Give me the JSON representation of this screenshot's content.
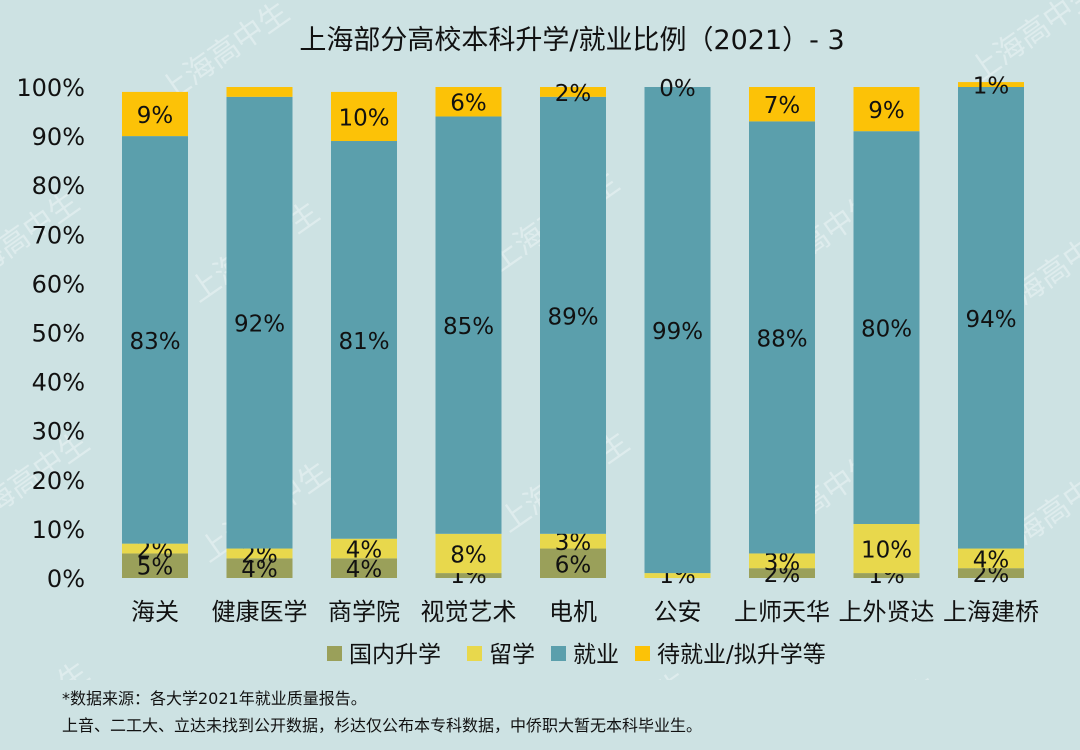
{
  "chart_data": {
    "type": "bar",
    "stacked": true,
    "title": "上海部分高校本科升学/就业比例（2021）- 3",
    "categories": [
      "海关",
      "健康医学",
      "商学院",
      "视觉艺术",
      "电机",
      "公安",
      "上师天华",
      "上外贤达",
      "上海建桥"
    ],
    "series": [
      {
        "name": "国内升学",
        "color": "#9aa05a",
        "values": [
          5,
          4,
          4,
          1,
          6,
          0,
          2,
          1,
          2
        ],
        "labels": [
          "5%",
          "4%",
          "4%",
          "1%",
          "6%",
          "",
          "2%",
          "1%",
          "2%"
        ]
      },
      {
        "name": "留学",
        "color": "#e8d84c",
        "values": [
          2,
          2,
          4,
          8,
          3,
          1,
          3,
          10,
          4
        ],
        "labels": [
          "2%",
          "2%",
          "4%",
          "8%",
          "3%",
          "1%",
          "3%",
          "10%",
          "4%"
        ]
      },
      {
        "name": "就业",
        "color": "#5b9fac",
        "values": [
          83,
          92,
          81,
          85,
          89,
          99,
          88,
          80,
          94
        ],
        "labels": [
          "83%",
          "92%",
          "81%",
          "85%",
          "89%",
          "99%",
          "88%",
          "80%",
          "94%"
        ]
      },
      {
        "name": "待就业/拟升学等",
        "color": "#fcc207",
        "values": [
          9,
          2,
          10,
          6,
          2,
          0,
          7,
          9,
          1
        ],
        "labels": [
          "9%",
          "",
          "10%",
          "6%",
          "2%",
          "0%",
          "7%",
          "9%",
          "1%"
        ]
      }
    ],
    "yticks": [
      "0%",
      "10%",
      "20%",
      "30%",
      "40%",
      "50%",
      "60%",
      "70%",
      "80%",
      "90%",
      "100%"
    ],
    "ylim": [
      0,
      100
    ],
    "legend_position": "bottom",
    "grid": false
  },
  "footnotes": {
    "line1": "*数据来源：各大学2021年就业质量报告。",
    "line2": "上音、二工大、立达未找到公开数据，杉达仅公布本专科数据，中侨职大暂无本科毕业生。"
  },
  "watermark": "上海高中生",
  "colors": {
    "background": "#cde2e3",
    "text": "#111111"
  }
}
